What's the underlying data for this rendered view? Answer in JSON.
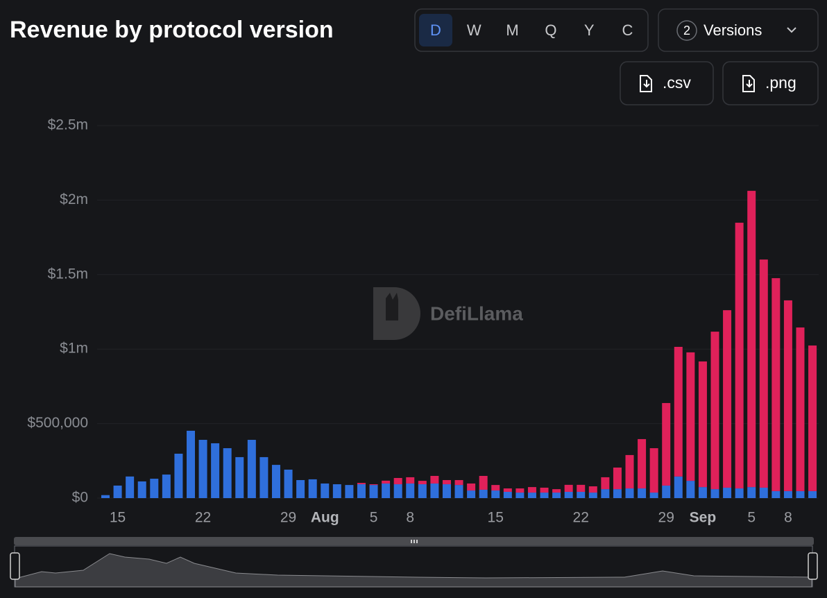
{
  "chart_data": {
    "type": "stacked-bar",
    "title": "Revenue by protocol version",
    "categories": [
      null,
      "15",
      null,
      null,
      null,
      null,
      null,
      null,
      "22",
      null,
      null,
      null,
      null,
      null,
      null,
      "29",
      null,
      null,
      "Aug",
      null,
      null,
      null,
      "5",
      null,
      null,
      "8",
      null,
      null,
      null,
      null,
      null,
      null,
      "15",
      null,
      null,
      null,
      null,
      null,
      null,
      "22",
      null,
      null,
      null,
      null,
      null,
      null,
      "29",
      null,
      null,
      "Sep",
      null,
      null,
      null,
      "5",
      null,
      null,
      "8",
      null,
      null
    ],
    "series": [
      {
        "color": "#2f6fdc",
        "values": [
          20000,
          84000,
          145000,
          112000,
          130000,
          158000,
          298000,
          452000,
          391000,
          368000,
          335000,
          275000,
          391000,
          275000,
          223000,
          191000,
          121000,
          126000,
          98000,
          93000,
          88000,
          93000,
          88000,
          98000,
          93000,
          98000,
          93000,
          98000,
          93000,
          88000,
          51000,
          56000,
          51000,
          42000,
          37000,
          37000,
          37000,
          37000,
          42000,
          42000,
          37000,
          60000,
          60000,
          65000,
          65000,
          37000,
          84000,
          145000,
          116000,
          74000,
          60000,
          70000,
          65000,
          74000,
          70000,
          47000,
          47000,
          47000,
          47000
        ]
      },
      {
        "color": "#e0215a",
        "values": [
          0,
          0,
          0,
          0,
          0,
          0,
          0,
          0,
          0,
          0,
          0,
          0,
          0,
          0,
          0,
          0,
          0,
          0,
          0,
          0,
          0,
          9000,
          5000,
          19000,
          42000,
          42000,
          23000,
          51000,
          28000,
          33000,
          47000,
          93000,
          37000,
          23000,
          28000,
          37000,
          33000,
          23000,
          47000,
          47000,
          42000,
          80000,
          145000,
          224000,
          331000,
          298000,
          554000,
          870000,
          862000,
          843000,
          1057000,
          1191000,
          1783000,
          1988000,
          1531000,
          1429000,
          1280000,
          1098000,
          977000
        ]
      }
    ],
    "ylim": [
      0,
      2500000
    ],
    "yticks": [
      {
        "value": 0,
        "label": "$0"
      },
      {
        "value": 500000,
        "label": "$500,000"
      },
      {
        "value": 1000000,
        "label": "$1m"
      },
      {
        "value": 1500000,
        "label": "$1.5m"
      },
      {
        "value": 2000000,
        "label": "$2m"
      },
      {
        "value": 2500000,
        "label": "$2.5m"
      }
    ],
    "grid": true
  },
  "controls": {
    "periods": [
      "D",
      "W",
      "M",
      "Q",
      "Y",
      "C"
    ],
    "version_count": "2",
    "versions_label": "Versions",
    "downloads": [
      ".csv",
      ".png"
    ]
  },
  "watermark": "DefiLlama"
}
